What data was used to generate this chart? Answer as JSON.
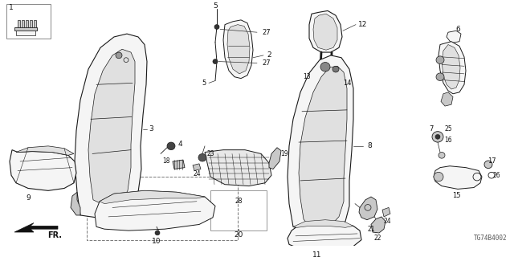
{
  "bg": "#ffffff",
  "lc": "#1a1a1a",
  "lc2": "#555555",
  "fc_main": "#f5f5f5",
  "fc_shade": "#e0e0e0",
  "fc_dark": "#c8c8c8",
  "diagram_code": "TG74B4002",
  "figsize": [
    6.4,
    3.2
  ],
  "dpi": 100
}
